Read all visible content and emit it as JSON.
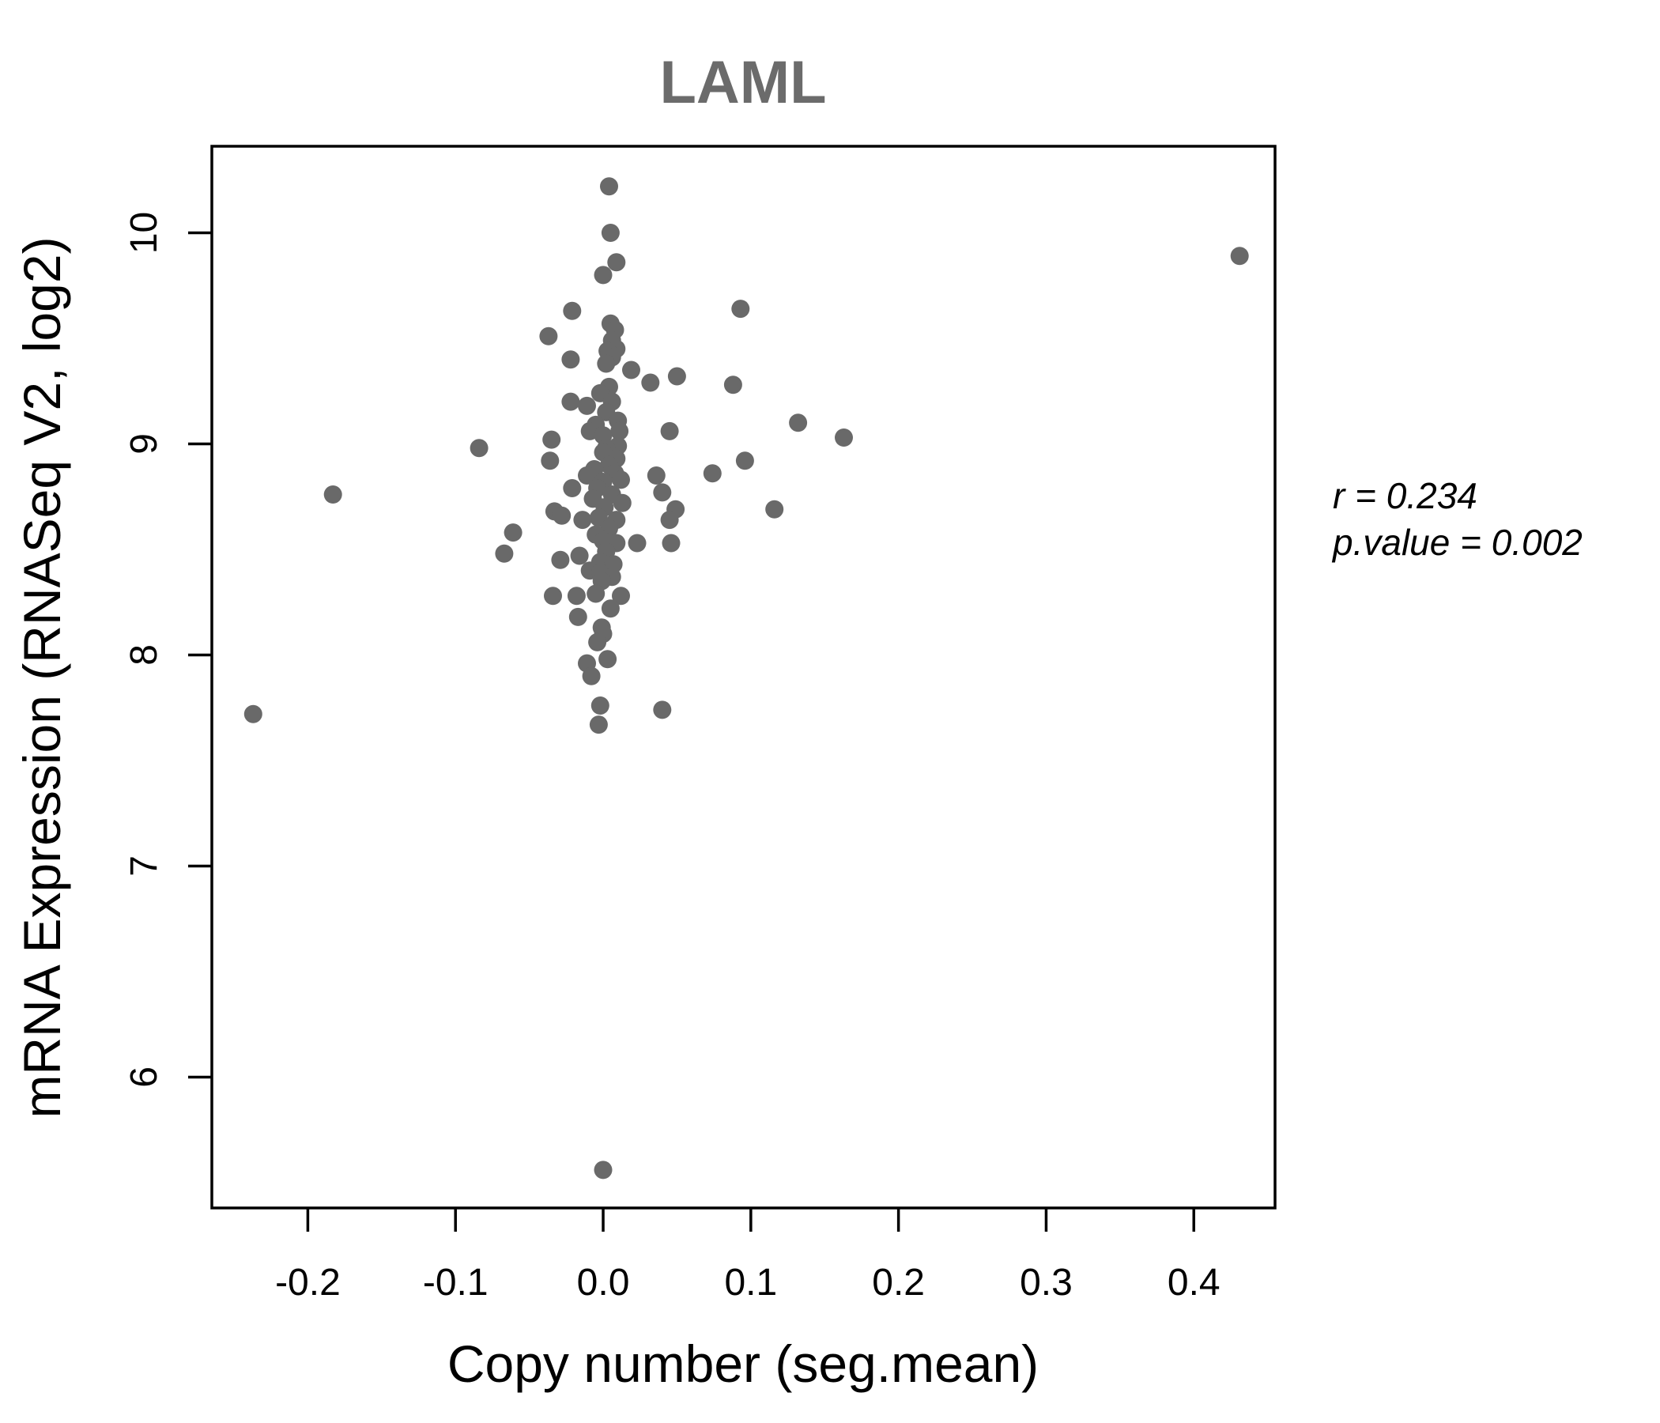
{
  "title": "LAML",
  "annotation": {
    "line1": "r = 0.234",
    "line2": "p.value = 0.002",
    "r": 0.234,
    "p_value": 0.002
  },
  "chart_data": {
    "type": "scatter",
    "title": "LAML",
    "xlabel": "Copy number (seg.mean)",
    "ylabel": "mRNA Expression (RNASeq V2, log2)",
    "xlim": [
      -0.265,
      0.455
    ],
    "ylim": [
      5.38,
      10.41
    ],
    "x_ticks": [
      -0.2,
      -0.1,
      0.0,
      0.1,
      0.2,
      0.3,
      0.4
    ],
    "x_tick_labels": [
      "-0.2",
      "-0.1",
      "0.0",
      "0.1",
      "0.2",
      "0.3",
      "0.4"
    ],
    "y_ticks": [
      6,
      7,
      8,
      9,
      10
    ],
    "y_tick_labels": [
      "6",
      "7",
      "8",
      "9",
      "10"
    ],
    "grid": false,
    "legend": null,
    "point_color": "#696969",
    "point_radius": 11.5,
    "annotations": [
      "r = 0.234",
      "p.value = 0.002"
    ],
    "points": [
      [
        0.004,
        10.22
      ],
      [
        0.005,
        10.0
      ],
      [
        0.009,
        9.86
      ],
      [
        0.0,
        9.8
      ],
      [
        0.093,
        9.64
      ],
      [
        -0.021,
        9.63
      ],
      [
        0.005,
        9.57
      ],
      [
        0.008,
        9.54
      ],
      [
        -0.037,
        9.51
      ],
      [
        0.006,
        9.49
      ],
      [
        0.009,
        9.45
      ],
      [
        0.003,
        9.44
      ],
      [
        0.006,
        9.41
      ],
      [
        -0.022,
        9.4
      ],
      [
        0.002,
        9.38
      ],
      [
        0.019,
        9.35
      ],
      [
        0.05,
        9.32
      ],
      [
        0.032,
        9.29
      ],
      [
        0.088,
        9.28
      ],
      [
        0.004,
        9.27
      ],
      [
        -0.002,
        9.24
      ],
      [
        -0.022,
        9.2
      ],
      [
        0.006,
        9.2
      ],
      [
        -0.011,
        9.18
      ],
      [
        0.002,
        9.15
      ],
      [
        0.01,
        9.11
      ],
      [
        0.132,
        9.1
      ],
      [
        -0.005,
        9.09
      ],
      [
        0.011,
        9.06
      ],
      [
        0.045,
        9.06
      ],
      [
        -0.009,
        9.06
      ],
      [
        0.0,
        9.04
      ],
      [
        0.163,
        9.03
      ],
      [
        -0.035,
        9.02
      ],
      [
        0.01,
        8.99
      ],
      [
        -0.084,
        8.98
      ],
      [
        0.002,
        8.98
      ],
      [
        0.0,
        8.96
      ],
      [
        0.009,
        8.93
      ],
      [
        -0.036,
        8.92
      ],
      [
        0.096,
        8.92
      ],
      [
        0.004,
        8.9
      ],
      [
        -0.006,
        8.88
      ],
      [
        0.008,
        8.86
      ],
      [
        0.074,
        8.86
      ],
      [
        0.036,
        8.85
      ],
      [
        -0.011,
        8.85
      ],
      [
        0.012,
        8.83
      ],
      [
        0.0,
        8.82
      ],
      [
        -0.021,
        8.79
      ],
      [
        -0.004,
        8.79
      ],
      [
        0.04,
        8.77
      ],
      [
        -0.183,
        8.76
      ],
      [
        0.006,
        8.76
      ],
      [
        -0.007,
        8.74
      ],
      [
        0.013,
        8.72
      ],
      [
        0.001,
        8.7
      ],
      [
        0.116,
        8.69
      ],
      [
        -0.033,
        8.68
      ],
      [
        0.049,
        8.69
      ],
      [
        -0.028,
        8.66
      ],
      [
        -0.003,
        8.65
      ],
      [
        -0.014,
        8.64
      ],
      [
        0.009,
        8.64
      ],
      [
        0.045,
        8.64
      ],
      [
        0.004,
        8.6
      ],
      [
        -0.061,
        8.58
      ],
      [
        -0.005,
        8.57
      ],
      [
        0.0,
        8.54
      ],
      [
        0.046,
        8.53
      ],
      [
        0.023,
        8.53
      ],
      [
        0.009,
        8.53
      ],
      [
        0.002,
        8.49
      ],
      [
        -0.067,
        8.48
      ],
      [
        -0.016,
        8.47
      ],
      [
        -0.029,
        8.45
      ],
      [
        -0.002,
        8.44
      ],
      [
        0.007,
        8.43
      ],
      [
        -0.009,
        8.4
      ],
      [
        -0.002,
        8.39
      ],
      [
        0.006,
        8.37
      ],
      [
        -0.001,
        8.35
      ],
      [
        -0.034,
        8.28
      ],
      [
        -0.018,
        8.28
      ],
      [
        -0.005,
        8.29
      ],
      [
        0.012,
        8.28
      ],
      [
        0.005,
        8.22
      ],
      [
        -0.017,
        8.18
      ],
      [
        -0.001,
        8.13
      ],
      [
        0.0,
        8.1
      ],
      [
        -0.004,
        8.06
      ],
      [
        0.003,
        7.98
      ],
      [
        -0.011,
        7.96
      ],
      [
        -0.008,
        7.9
      ],
      [
        -0.002,
        7.76
      ],
      [
        0.04,
        7.74
      ],
      [
        -0.237,
        7.72
      ],
      [
        -0.003,
        7.67
      ],
      [
        0.431,
        9.89
      ],
      [
        0.0,
        5.56
      ]
    ]
  }
}
